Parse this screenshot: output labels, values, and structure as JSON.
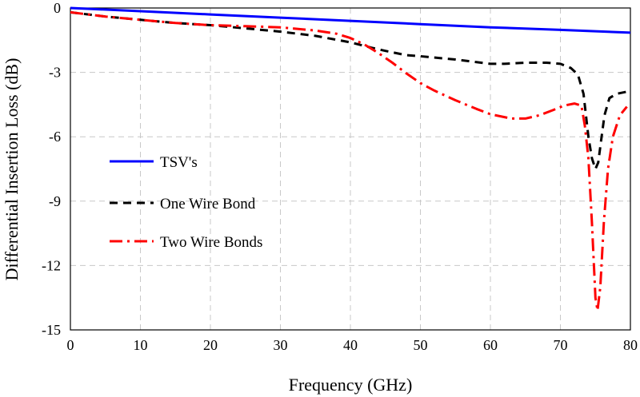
{
  "chart_data": {
    "type": "line",
    "title": "",
    "xlabel": "Frequency  (GHz)",
    "ylabel": "Differential  Insertion Loss (dB)",
    "xlim": [
      0,
      80
    ],
    "ylim": [
      -15,
      0
    ],
    "x_ticks": [
      0,
      10,
      20,
      30,
      40,
      50,
      60,
      70,
      80
    ],
    "y_ticks": [
      0,
      -3,
      -6,
      -9,
      -12,
      -15
    ],
    "x_tick_labels": [
      "0",
      "10",
      "20",
      "30",
      "40",
      "50",
      "60",
      "70",
      "80"
    ],
    "y_tick_labels": [
      "0",
      "-3",
      "-6",
      "-9",
      "-12",
      "-15"
    ],
    "grid": {
      "vertical": true,
      "horizontal": true
    },
    "legend_position": "left-middle",
    "series": [
      {
        "name": "TSV's",
        "color": "#0000ff",
        "dash": "solid",
        "x": [
          0,
          10,
          20,
          30,
          40,
          50,
          60,
          70,
          80
        ],
        "y": [
          0,
          -0.15,
          -0.3,
          -0.45,
          -0.6,
          -0.75,
          -0.9,
          -1.02,
          -1.15
        ]
      },
      {
        "name": "One Wire Bond",
        "color": "#000000",
        "dash": "dash",
        "x": [
          0,
          5,
          10,
          15,
          20,
          25,
          30,
          35,
          40,
          43,
          45,
          48,
          50,
          55,
          60,
          62,
          65,
          68,
          70,
          71.5,
          72.5,
          73.3,
          74,
          74.5,
          75,
          75.4,
          75.8,
          76.3,
          77,
          78,
          79.5
        ],
        "y": [
          -0.2,
          -0.4,
          -0.55,
          -0.7,
          -0.8,
          -0.95,
          -1.1,
          -1.3,
          -1.6,
          -1.85,
          -2.0,
          -2.2,
          -2.25,
          -2.4,
          -2.6,
          -2.6,
          -2.55,
          -2.55,
          -2.6,
          -2.8,
          -3.1,
          -4.0,
          -6.0,
          -7.0,
          -7.5,
          -7.2,
          -6.2,
          -5.0,
          -4.2,
          -4.0,
          -3.9
        ]
      },
      {
        "name": "Two Wire Bonds",
        "color": "#ff0000",
        "dash": "dashdot",
        "x": [
          0,
          5,
          10,
          15,
          20,
          25,
          30,
          35,
          38,
          40,
          42,
          44,
          46,
          48,
          50,
          52,
          55,
          58,
          60,
          63,
          65,
          67,
          69,
          70.5,
          72,
          73,
          73.5,
          74,
          74.5,
          75,
          75.3,
          75.7,
          76.2,
          76.8,
          77.5,
          78.5,
          79.5
        ],
        "y": [
          -0.2,
          -0.4,
          -0.55,
          -0.7,
          -0.8,
          -0.85,
          -0.9,
          -1.05,
          -1.2,
          -1.4,
          -1.7,
          -2.1,
          -2.55,
          -3.05,
          -3.5,
          -3.85,
          -4.3,
          -4.7,
          -4.95,
          -5.15,
          -5.15,
          -5.0,
          -4.75,
          -4.55,
          -4.45,
          -4.55,
          -5.5,
          -7.0,
          -10.0,
          -13.5,
          -14.1,
          -13.0,
          -10.0,
          -7.5,
          -6.0,
          -5.0,
          -4.6
        ]
      }
    ]
  }
}
